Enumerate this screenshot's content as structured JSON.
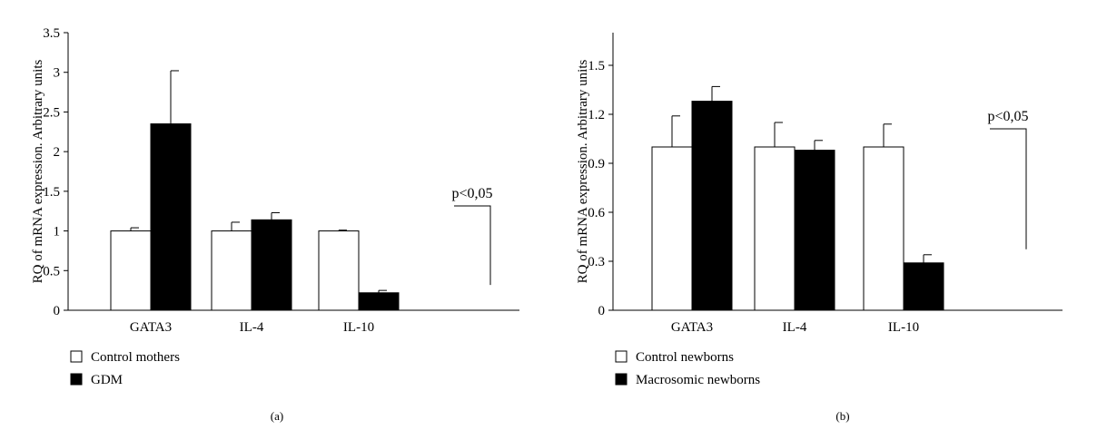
{
  "chart_data": [
    {
      "type": "bar",
      "panel_label": "(a)",
      "ylabel": "RQ of mRNA expression. Arbitrary units",
      "categories": [
        "GATA3",
        "IL-4",
        "IL-10"
      ],
      "ylim": [
        0,
        3.5
      ],
      "yticks": [
        "0",
        "0.5",
        "1",
        "1.5",
        "2",
        "2.5",
        "3",
        "3.5"
      ],
      "ytick_values": [
        0,
        0.5,
        1,
        1.5,
        2,
        2.5,
        3,
        3.5
      ],
      "grid": false,
      "legend_position": "bottom-left",
      "series": [
        {
          "name": "Control mothers",
          "color": "#ffffff",
          "values": [
            1.0,
            1.0,
            1.0
          ],
          "errors": [
            0.04,
            0.11,
            0.01
          ]
        },
        {
          "name": "GDM",
          "color": "#000000",
          "values": [
            2.35,
            1.14,
            0.22
          ],
          "errors": [
            0.67,
            0.09,
            0.03
          ]
        }
      ],
      "annotations": [
        {
          "text": "p<0,05",
          "category": "IL-10"
        }
      ]
    },
    {
      "type": "bar",
      "panel_label": "(b)",
      "ylabel": "RQ of mRNA expression. Arbitrary units",
      "categories": [
        "GATA3",
        "IL-4",
        "IL-10"
      ],
      "ylim": [
        0,
        1.7
      ],
      "yticks": [
        "0",
        "0.3",
        "0.6",
        "0.9",
        "1.2",
        "1.5"
      ],
      "ytick_values": [
        0,
        0.3,
        0.6,
        0.9,
        1.2,
        1.5
      ],
      "grid": false,
      "legend_position": "bottom-left",
      "series": [
        {
          "name": "Control newborns",
          "color": "#ffffff",
          "values": [
            1.0,
            1.0,
            1.0
          ],
          "errors": [
            0.19,
            0.15,
            0.14
          ]
        },
        {
          "name": "Macrosomic newborns",
          "color": "#000000",
          "values": [
            1.28,
            0.98,
            0.29
          ],
          "errors": [
            0.09,
            0.06,
            0.05
          ]
        }
      ],
      "annotations": [
        {
          "text": "p<0,05",
          "category": "IL-10"
        }
      ]
    }
  ]
}
